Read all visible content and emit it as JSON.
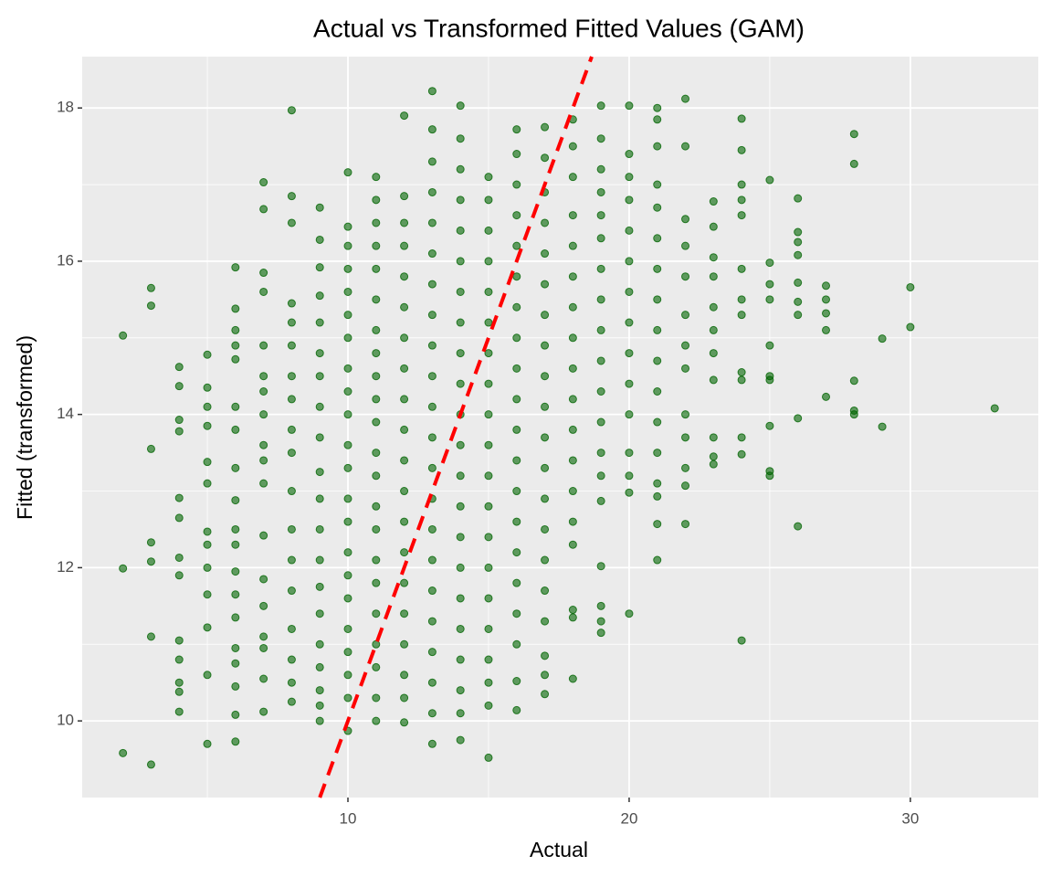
{
  "chart_data": {
    "type": "scatter",
    "title": "Actual vs Transformed Fitted Values (GAM)",
    "x_label": "Actual",
    "y_label": "Fitted (transformed)",
    "xlim": [
      0.55,
      34.55
    ],
    "ylim": [
      9.0,
      18.67
    ],
    "xticks": [
      10,
      20,
      30
    ],
    "yticks": [
      10,
      12,
      14,
      16,
      18
    ],
    "x_minor_grid": [
      5,
      15,
      25
    ],
    "y_minor_grid": [
      11,
      13,
      15,
      17
    ],
    "grid": true,
    "identity_line": {
      "color": "#ff0000",
      "dashed": true
    },
    "series": [
      {
        "color": "#006400",
        "x": [
          2,
          2,
          2,
          3,
          3,
          3,
          3,
          3,
          3,
          3,
          4,
          4,
          4,
          4,
          4,
          4,
          4,
          4,
          4,
          4,
          4,
          4,
          4,
          5,
          5,
          5,
          5,
          5,
          5,
          5,
          5,
          5,
          5,
          5,
          5,
          5,
          6,
          6,
          6,
          6,
          6,
          6,
          6,
          6,
          6,
          6,
          6,
          6,
          6,
          6,
          6,
          6,
          6,
          6,
          6,
          7,
          7,
          7,
          7,
          7,
          7,
          7,
          7,
          7,
          7,
          7,
          7,
          7,
          7,
          7,
          7,
          7,
          7,
          8,
          8,
          8,
          8,
          8,
          8,
          8,
          8,
          8,
          8,
          8,
          8,
          8,
          8,
          8,
          8,
          8,
          8,
          9,
          9,
          9,
          9,
          9,
          9,
          9,
          9,
          9,
          9,
          9,
          9,
          9,
          9,
          9,
          9,
          9,
          9,
          9,
          9,
          10,
          10,
          10,
          10,
          10,
          10,
          10,
          10,
          10,
          10,
          10,
          10,
          10,
          10,
          10,
          10,
          10,
          10,
          10,
          10,
          10,
          10,
          11,
          11,
          11,
          11,
          11,
          11,
          11,
          11,
          11,
          11,
          11,
          11,
          11,
          11,
          11,
          11,
          11,
          11,
          11,
          11,
          11,
          11,
          12,
          12,
          12,
          12,
          12,
          12,
          12,
          12,
          12,
          12,
          12,
          12,
          12,
          12,
          12,
          12,
          12,
          12,
          12,
          12,
          13,
          13,
          13,
          13,
          13,
          13,
          13,
          13,
          13,
          13,
          13,
          13,
          13,
          13,
          13,
          13,
          13,
          13,
          13,
          13,
          13,
          13,
          14,
          14,
          14,
          14,
          14,
          14,
          14,
          14,
          14,
          14,
          14,
          14,
          14,
          14,
          14,
          14,
          14,
          14,
          14,
          14,
          14,
          14,
          15,
          15,
          15,
          15,
          15,
          15,
          15,
          15,
          15,
          15,
          15,
          15,
          15,
          15,
          15,
          15,
          15,
          15,
          15,
          15,
          16,
          16,
          16,
          16,
          16,
          16,
          16,
          16,
          16,
          16,
          16,
          16,
          16,
          16,
          16,
          16,
          16,
          16,
          16,
          16,
          17,
          17,
          17,
          17,
          17,
          17,
          17,
          17,
          17,
          17,
          17,
          17,
          17,
          17,
          17,
          17,
          17,
          17,
          17,
          17,
          18,
          18,
          18,
          18,
          18,
          18,
          18,
          18,
          18,
          18,
          18,
          18,
          18,
          18,
          18,
          18,
          18,
          18,
          19,
          19,
          19,
          19,
          19,
          19,
          19,
          19,
          19,
          19,
          19,
          19,
          19,
          19,
          19,
          19,
          19,
          19,
          19,
          20,
          20,
          20,
          20,
          20,
          20,
          20,
          20,
          20,
          20,
          20,
          20,
          20,
          20,
          20,
          21,
          21,
          21,
          21,
          21,
          21,
          21,
          21,
          21,
          21,
          21,
          21,
          21,
          21,
          21,
          21,
          21,
          22,
          22,
          22,
          22,
          22,
          22,
          22,
          22,
          22,
          22,
          22,
          22,
          22,
          23,
          23,
          23,
          23,
          23,
          23,
          23,
          23,
          23,
          23,
          23,
          24,
          24,
          24,
          24,
          24,
          24,
          24,
          24,
          24,
          24,
          24,
          24,
          24,
          25,
          25,
          25,
          25,
          25,
          25,
          25,
          25,
          25,
          25,
          26,
          26,
          26,
          26,
          26,
          26,
          26,
          26,
          26,
          27,
          27,
          27,
          27,
          27,
          28,
          28,
          28,
          28,
          28,
          29,
          29,
          30,
          30,
          33
        ],
        "values": [
          15.03,
          11.99,
          9.58,
          15.65,
          15.42,
          13.55,
          12.33,
          12.08,
          11.1,
          9.43,
          14.62,
          14.37,
          13.93,
          13.78,
          12.91,
          12.65,
          12.13,
          11.9,
          11.05,
          10.8,
          10.5,
          10.38,
          10.12,
          14.78,
          14.35,
          14.1,
          13.85,
          13.38,
          13.1,
          12.47,
          12.3,
          12.0,
          11.65,
          11.22,
          10.6,
          9.7,
          15.92,
          15.38,
          15.1,
          14.9,
          14.72,
          14.1,
          13.8,
          13.3,
          12.88,
          12.5,
          12.3,
          11.95,
          11.65,
          11.35,
          10.95,
          10.75,
          10.45,
          10.08,
          9.73,
          17.03,
          16.68,
          15.85,
          15.6,
          14.9,
          14.5,
          14.3,
          14.0,
          13.6,
          13.4,
          13.1,
          12.42,
          11.85,
          11.5,
          11.1,
          10.95,
          10.55,
          10.12,
          17.97,
          16.85,
          16.5,
          15.45,
          15.2,
          14.9,
          14.5,
          14.2,
          13.8,
          13.5,
          13.0,
          12.5,
          12.1,
          11.7,
          11.2,
          10.8,
          10.5,
          10.25,
          16.7,
          16.28,
          15.92,
          15.55,
          15.2,
          14.8,
          14.5,
          14.1,
          13.7,
          13.25,
          12.9,
          12.5,
          12.1,
          11.75,
          11.4,
          11.0,
          10.7,
          10.4,
          10.2,
          10.0,
          17.16,
          16.45,
          16.2,
          15.9,
          15.6,
          15.3,
          15.0,
          14.6,
          14.3,
          14.0,
          13.6,
          13.3,
          12.9,
          12.6,
          12.2,
          11.9,
          11.6,
          11.2,
          10.9,
          10.6,
          10.3,
          9.87,
          17.1,
          16.8,
          16.5,
          16.2,
          15.9,
          15.5,
          15.1,
          14.8,
          14.5,
          14.2,
          13.9,
          13.5,
          13.2,
          12.8,
          12.5,
          12.1,
          11.8,
          11.4,
          11.0,
          10.7,
          10.3,
          10.0,
          17.9,
          16.85,
          16.5,
          16.2,
          15.8,
          15.4,
          15.0,
          14.6,
          14.2,
          13.8,
          13.4,
          13.0,
          12.6,
          12.2,
          11.8,
          11.4,
          11.0,
          10.6,
          10.3,
          9.98,
          18.22,
          17.72,
          17.3,
          16.9,
          16.5,
          16.1,
          15.7,
          15.3,
          14.9,
          14.5,
          14.1,
          13.7,
          13.3,
          12.9,
          12.5,
          12.1,
          11.7,
          11.3,
          10.9,
          10.5,
          10.1,
          9.7,
          18.03,
          17.6,
          17.2,
          16.8,
          16.4,
          16.0,
          15.6,
          15.2,
          14.8,
          14.4,
          14.0,
          13.6,
          13.2,
          12.8,
          12.4,
          12.0,
          11.6,
          11.2,
          10.8,
          10.4,
          10.1,
          9.75,
          17.1,
          16.8,
          16.4,
          16.0,
          15.6,
          15.2,
          14.8,
          14.4,
          14.0,
          13.6,
          13.2,
          12.8,
          12.4,
          12.0,
          11.6,
          11.2,
          10.8,
          10.5,
          10.2,
          9.52,
          17.72,
          17.4,
          17.0,
          16.6,
          16.2,
          15.8,
          15.4,
          15.0,
          14.6,
          14.2,
          13.8,
          13.4,
          13.0,
          12.6,
          12.2,
          11.8,
          11.4,
          11.0,
          10.52,
          10.14,
          17.75,
          17.35,
          16.9,
          16.5,
          16.1,
          15.7,
          15.3,
          14.9,
          14.5,
          14.1,
          13.7,
          13.3,
          12.9,
          12.5,
          12.1,
          11.7,
          11.3,
          10.85,
          10.6,
          10.35,
          17.85,
          17.5,
          17.1,
          16.6,
          16.2,
          15.8,
          15.4,
          15.0,
          14.6,
          14.2,
          13.8,
          13.4,
          13.0,
          12.6,
          12.3,
          11.45,
          11.35,
          10.55,
          18.03,
          17.6,
          17.2,
          16.9,
          16.6,
          16.3,
          15.9,
          15.5,
          15.1,
          14.7,
          14.3,
          13.9,
          13.5,
          13.2,
          12.87,
          12.02,
          11.5,
          11.3,
          11.15,
          18.03,
          17.4,
          17.1,
          16.8,
          16.4,
          16.0,
          15.6,
          15.2,
          14.8,
          14.4,
          14.0,
          13.5,
          13.2,
          12.98,
          11.4,
          18.0,
          17.85,
          17.5,
          17.0,
          16.7,
          16.3,
          15.9,
          15.5,
          15.1,
          14.7,
          14.3,
          13.9,
          13.5,
          13.1,
          12.93,
          12.57,
          12.1,
          18.12,
          17.5,
          16.55,
          16.2,
          15.8,
          15.3,
          14.9,
          14.6,
          14.0,
          13.7,
          13.3,
          13.07,
          12.57,
          16.78,
          16.45,
          16.05,
          15.8,
          15.4,
          15.1,
          14.8,
          14.45,
          13.7,
          13.45,
          13.35,
          17.86,
          17.45,
          17.0,
          16.8,
          16.6,
          15.9,
          15.5,
          15.3,
          14.55,
          14.45,
          13.7,
          13.48,
          11.05,
          17.06,
          15.98,
          15.7,
          15.5,
          14.9,
          14.5,
          14.45,
          13.85,
          13.26,
          13.2,
          16.82,
          16.38,
          16.25,
          16.08,
          15.72,
          15.47,
          15.3,
          13.95,
          12.54,
          15.68,
          15.5,
          15.32,
          15.1,
          14.23,
          17.66,
          17.27,
          14.44,
          14.05,
          14.0,
          14.99,
          13.84,
          15.66,
          15.14,
          14.08
        ]
      }
    ]
  }
}
